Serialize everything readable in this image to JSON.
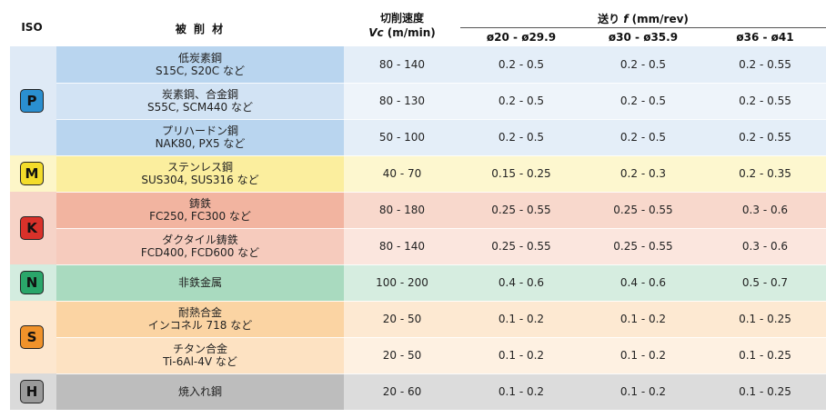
{
  "header": {
    "iso": "ISO",
    "material": "被 削 材",
    "speed_line1": "切削速度",
    "speed_line2_italic": "Vc",
    "speed_line2_unit": " (m/min)",
    "feed_prefix": "送り ",
    "feed_italic": "f",
    "feed_unit": " (mm/rev)",
    "feed_ranges": [
      "ø20 - ø29.9",
      "ø30 - ø35.9",
      "ø36 - ø41"
    ]
  },
  "groups": [
    {
      "letter": "P",
      "color": "#2a8fd0",
      "bg": "#dfeaf6",
      "rows": [
        0,
        1,
        2
      ]
    },
    {
      "letter": "M",
      "color": "#f3dc2a",
      "bg": "#fdf6c8",
      "rows": [
        3
      ]
    },
    {
      "letter": "K",
      "color": "#d9312a",
      "bg": "#f6d3c7",
      "rows": [
        4,
        5
      ]
    },
    {
      "letter": "N",
      "color": "#2aa66a",
      "bg": "#d3ecdf",
      "rows": [
        6
      ]
    },
    {
      "letter": "S",
      "color": "#f0922a",
      "bg": "#fde7cf",
      "rows": [
        7,
        8
      ]
    },
    {
      "letter": "H",
      "color": "#9a9a9a",
      "bg": "#dadada",
      "rows": [
        9
      ]
    }
  ],
  "rows": [
    {
      "material1": "低炭素鋼",
      "material2": "S15C, S20C など",
      "speed": "80 - 140",
      "f1": "0.2 - 0.5",
      "f2": "0.2 - 0.5",
      "f3": "0.2 - 0.55",
      "mat_bg": "#b9d5ef",
      "bg": "#e4eef8"
    },
    {
      "material1": "炭素鋼、合金鋼",
      "material2": "S55C, SCM440 など",
      "speed": "80 - 130",
      "f1": "0.2 - 0.5",
      "f2": "0.2 - 0.5",
      "f3": "0.2 - 0.55",
      "mat_bg": "#d2e3f4",
      "bg": "#eef4fa"
    },
    {
      "material1": "プリハードン鋼",
      "material2": "NAK80, PX5 など",
      "speed": "50 - 100",
      "f1": "0.2 - 0.5",
      "f2": "0.2 - 0.5",
      "f3": "0.2 - 0.55",
      "mat_bg": "#b9d5ef",
      "bg": "#e4eef8"
    },
    {
      "material1": "ステンレス鋼",
      "material2": "SUS304, SUS316 など",
      "speed": "40 - 70",
      "f1": "0.15 - 0.25",
      "f2": "0.2 - 0.3",
      "f3": "0.2 - 0.35",
      "mat_bg": "#fbee9e",
      "bg": "#fdf7cf"
    },
    {
      "material1": "鋳鉄",
      "material2": "FC250, FC300 など",
      "speed": "80 - 180",
      "f1": "0.25 - 0.55",
      "f2": "0.25 - 0.55",
      "f3": "0.3 - 0.6",
      "mat_bg": "#f2b4a0",
      "bg": "#f8d8cc"
    },
    {
      "material1": "ダクタイル鋳鉄",
      "material2": "FCD400, FCD600 など",
      "speed": "80 - 140",
      "f1": "0.25 - 0.55",
      "f2": "0.25 - 0.55",
      "f3": "0.3 - 0.6",
      "mat_bg": "#f6cbbd",
      "bg": "#fbe6de"
    },
    {
      "material1": "非鉄金属",
      "material2": "",
      "speed": "100 - 200",
      "f1": "0.4 - 0.6",
      "f2": "0.4 - 0.6",
      "f3": "0.5 - 0.7",
      "mat_bg": "#a9dabf",
      "bg": "#d6ede0"
    },
    {
      "material1": "耐熱合金",
      "material2": "インコネル 718 など",
      "speed": "20 - 50",
      "f1": "0.1 - 0.2",
      "f2": "0.1 - 0.2",
      "f3": "0.1 - 0.25",
      "mat_bg": "#fbd4a3",
      "bg": "#fde9d2"
    },
    {
      "material1": "チタン合金",
      "material2": "Ti-6Al-4V など",
      "speed": "20 - 50",
      "f1": "0.1 - 0.2",
      "f2": "0.1 - 0.2",
      "f3": "0.1 - 0.25",
      "mat_bg": "#fde2c2",
      "bg": "#fef1e2"
    },
    {
      "material1": "焼入れ鋼",
      "material2": "",
      "speed": "20 - 60",
      "f1": "0.1 - 0.2",
      "f2": "0.1 - 0.2",
      "f3": "0.1 - 0.25",
      "mat_bg": "#bdbdbd",
      "bg": "#dcdcdc"
    }
  ]
}
